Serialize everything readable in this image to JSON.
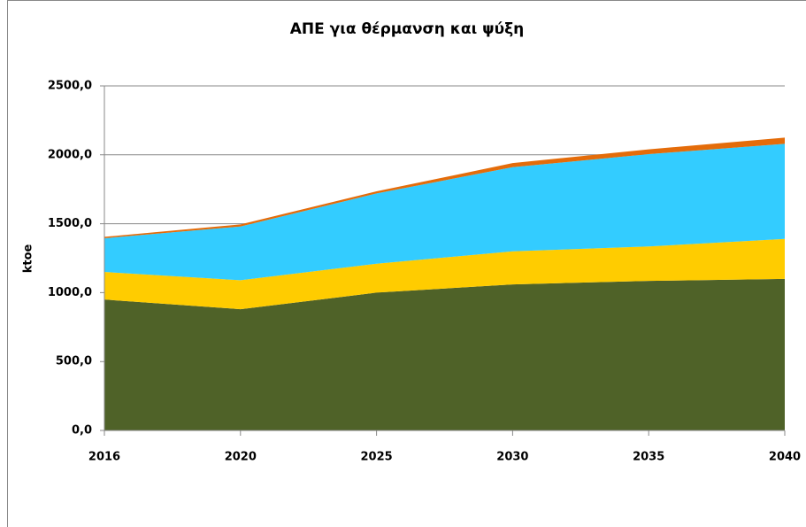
{
  "chart_data": {
    "type": "stacked_area",
    "title": "ΑΠΕ για θέρμανση και ψύξη",
    "y_label": "ktoe",
    "categories": [
      "2016",
      "2020",
      "2025",
      "2030",
      "2035",
      "2040"
    ],
    "series": [
      {
        "color": "#4f6228",
        "values": [
          950,
          880,
          1000,
          1060,
          1085,
          1100
        ]
      },
      {
        "color": "#ffcc00",
        "values": [
          200,
          210,
          210,
          240,
          250,
          290
        ]
      },
      {
        "color": "#33ccff",
        "values": [
          245,
          390,
          510,
          610,
          670,
          690
        ]
      },
      {
        "color": "#e46c0a",
        "values": [
          10,
          15,
          15,
          30,
          35,
          45
        ]
      }
    ],
    "ylim": [
      0,
      2500
    ],
    "yticks": [
      {
        "value": 0,
        "label": "0,0"
      },
      {
        "value": 500,
        "label": "500,0"
      },
      {
        "value": 1000,
        "label": "1000,0"
      },
      {
        "value": 1500,
        "label": "1500,0"
      },
      {
        "value": 2000,
        "label": "2000,0"
      },
      {
        "value": 2500,
        "label": "2500,0"
      }
    ],
    "grid": true
  }
}
